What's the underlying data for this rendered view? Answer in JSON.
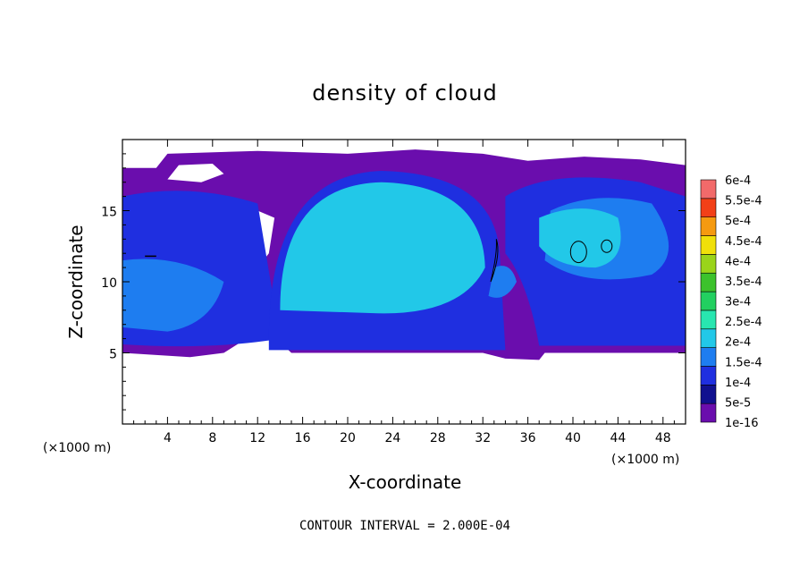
{
  "chart_data": {
    "type": "heatmap",
    "title": "density of cloud",
    "xlabel": "X-coordinate",
    "ylabel": "Z-coordinate",
    "x_unit": "(×1000 m)",
    "y_unit": "(×1000 m)",
    "xlim": [
      0,
      50
    ],
    "ylim": [
      0,
      20
    ],
    "xticks": [
      4,
      8,
      12,
      16,
      20,
      24,
      28,
      32,
      36,
      40,
      44,
      48
    ],
    "yticks": [
      5,
      10,
      15
    ],
    "colorbar": {
      "labels": [
        "1e-16",
        "5e-5",
        "1e-4",
        "1.5e-4",
        "2e-4",
        "2.5e-4",
        "3e-4",
        "3.5e-4",
        "4e-4",
        "4.5e-4",
        "5e-4",
        "5.5e-4",
        "6e-4"
      ],
      "colors": [
        "#6a0dad",
        "#10108f",
        "#1f2fe0",
        "#1e7df0",
        "#22c8e8",
        "#28e6b0",
        "#22d060",
        "#3cc22c",
        "#9ad41a",
        "#f0e00a",
        "#f59a10",
        "#f24018",
        "#f26a6a"
      ]
    },
    "regions": [
      {
        "name": "main-cloud",
        "center": [
          23,
          12
        ],
        "value": "2e-4"
      },
      {
        "name": "left-cloud",
        "center": [
          4,
          9
        ],
        "value": "1.5e-4"
      },
      {
        "name": "right-cloud",
        "center": [
          43,
          13
        ],
        "value": "1.5e-4"
      },
      {
        "name": "anvil-layer",
        "center": [
          25,
          17.5
        ],
        "value": "1e-16"
      }
    ],
    "contours": [
      {
        "center": [
          33,
          11.5
        ],
        "value": "2e-4"
      },
      {
        "center": [
          40.5,
          12
        ],
        "value": "2e-4"
      },
      {
        "center": [
          43,
          12.5
        ],
        "value": "2e-4"
      },
      {
        "center": [
          2.5,
          11.8
        ],
        "value": "2e-4"
      }
    ],
    "contour_interval": "CONTOUR INTERVAL = 2.000E-04"
  }
}
